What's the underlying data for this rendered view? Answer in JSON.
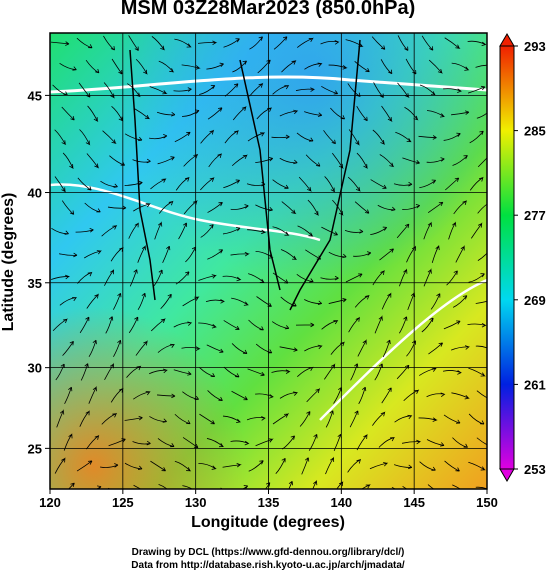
{
  "chart_data": {
    "type": "map",
    "title": "MSM 03Z28Mar2023 (850.0hPa)",
    "xlabel": "Longitude (degrees)",
    "ylabel": "Latitude  (degrees)",
    "xlim": [
      120,
      150
    ],
    "xticks": [
      120,
      125,
      130,
      135,
      140,
      145,
      150
    ],
    "ylim": [
      22.4,
      48
    ],
    "yticks": [
      25,
      30,
      35,
      40,
      45
    ],
    "yscale": "mercator",
    "colorbar": {
      "lim": [
        253,
        293
      ],
      "ticks": [
        253,
        261,
        269,
        277,
        285,
        293
      ],
      "colors": [
        "#e000e0",
        "#0020e0",
        "#00d8f0",
        "#00e040",
        "#f0f000",
        "#f02000"
      ]
    },
    "credits": [
      "Drawing by DCL (https://www.gfd-dennou.org/library/dcl/)",
      "Data from http://database.rish.kyoto-u.ac.jp/arch/jmadata/"
    ]
  }
}
